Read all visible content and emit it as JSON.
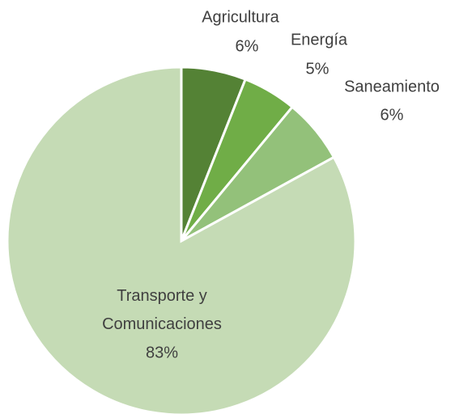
{
  "chart_data": {
    "type": "pie",
    "categories": [
      "Agricultura",
      "Energía",
      "Saneamiento",
      "Transporte y Comunicaciones"
    ],
    "values": [
      6,
      5,
      6,
      83
    ],
    "value_labels": [
      "6%",
      "5%",
      "6%",
      "83%"
    ],
    "colors": [
      "#548235",
      "#70ad47",
      "#93c17a",
      "#c5dbb5"
    ]
  }
}
